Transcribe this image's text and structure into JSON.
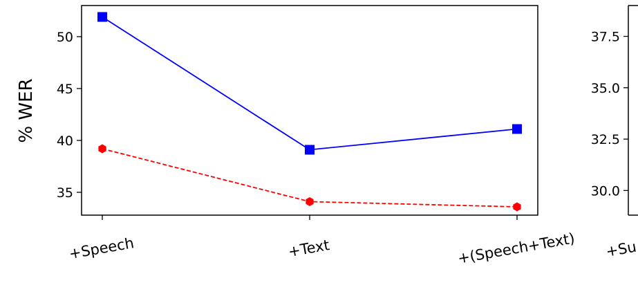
{
  "chart_data": [
    {
      "type": "line",
      "ylabel": "% WER",
      "categories": [
        "+Speech",
        "+Text",
        "+(Speech+Text)"
      ],
      "ylim": [
        32.8,
        53.0
      ],
      "yticks": [
        35,
        40,
        45,
        50
      ],
      "grid": false,
      "series": [
        {
          "values": [
            51.9,
            39.1,
            41.1
          ],
          "color": "#0000ff",
          "line_style": "solid",
          "marker": "square"
        },
        {
          "values": [
            39.2,
            34.1,
            33.6
          ],
          "color": "#ff0000",
          "line_style": "dashed",
          "marker": "hexagon"
        }
      ]
    },
    {
      "type": "line",
      "categories": [
        "+Su"
      ],
      "ylim": [
        28.8,
        39.0
      ],
      "yticks": [
        "30.0",
        "32.5",
        "35.0",
        "37.5"
      ],
      "grid": false,
      "series": []
    }
  ]
}
